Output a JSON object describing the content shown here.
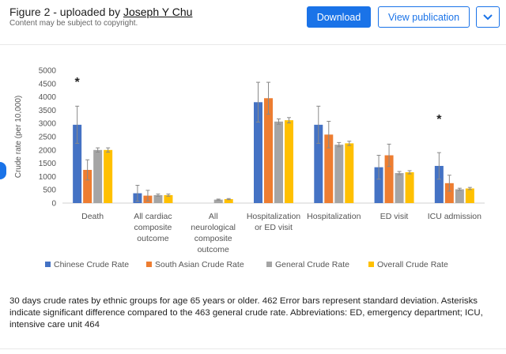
{
  "header": {
    "title_prefix": "Figure 2 - uploaded by ",
    "author": "Joseph Y Chu",
    "subtitle": "Content may be subject to copyright.",
    "download_label": "Download",
    "view_label": "View publication",
    "more_icon": "chevron-down-icon"
  },
  "colors": {
    "accent": "#1a73e8",
    "series": [
      "#4472c4",
      "#ed7d31",
      "#a5a5a5",
      "#ffc000"
    ]
  },
  "chart_data": {
    "type": "bar",
    "ylabel": "Crude rate (per 10,000)",
    "ylim": [
      0,
      5000
    ],
    "yticks": [
      0,
      500,
      1000,
      1500,
      2000,
      2500,
      3000,
      3500,
      4000,
      4500,
      5000
    ],
    "categories": [
      [
        "Death"
      ],
      [
        "All cardiac",
        "composite",
        "outcome"
      ],
      [
        "All",
        "neurological",
        "composite",
        "outcome"
      ],
      [
        "Hospitalization",
        "or ED visit"
      ],
      [
        "Hospitalization"
      ],
      [
        "ED visit"
      ],
      [
        "ICU admission"
      ]
    ],
    "series": [
      {
        "name": "Chinese Crude Rate",
        "values": [
          2950,
          370,
          0,
          3800,
          2950,
          1350,
          1400
        ],
        "errors": [
          700,
          300,
          0,
          750,
          700,
          450,
          500
        ]
      },
      {
        "name": "South Asian Crude Rate",
        "values": [
          1250,
          280,
          0,
          3950,
          2580,
          1800,
          750
        ],
        "errors": [
          380,
          200,
          0,
          600,
          500,
          420,
          300
        ]
      },
      {
        "name": "General Crude Rate",
        "values": [
          2000,
          300,
          130,
          3070,
          2200,
          1130,
          520
        ],
        "errors": [
          80,
          40,
          20,
          100,
          80,
          60,
          40
        ]
      },
      {
        "name": "Overall Crude Rate",
        "values": [
          2000,
          300,
          150,
          3120,
          2250,
          1160,
          550
        ],
        "errors": [
          80,
          40,
          20,
          100,
          80,
          60,
          40
        ]
      }
    ],
    "annotations": [
      {
        "text": "*",
        "category": 0,
        "value": 4700
      },
      {
        "text": "*",
        "category": 6,
        "value": 3300
      }
    ],
    "legend_position": "bottom"
  },
  "caption": "30 days crude rates by ethnic groups for age 65 years or older. 462 Error bars represent standard deviation. Asterisks indicate significant difference compared to the 463 general crude rate. Abbreviations: ED, emergency department; ICU, intensive care unit 464"
}
